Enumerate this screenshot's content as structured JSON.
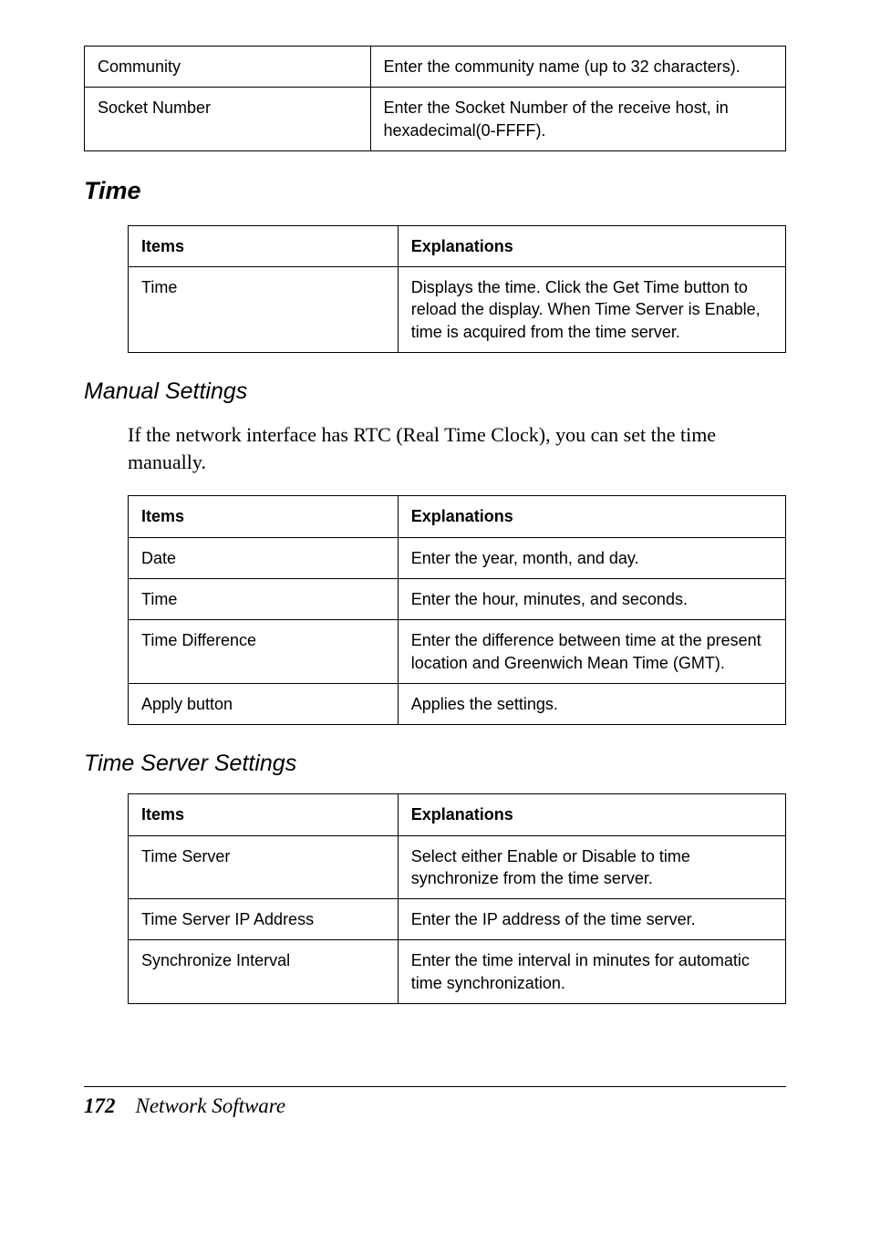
{
  "top_table": {
    "rows": [
      {
        "item": "Community",
        "explanation": "Enter the community name (up to 32 characters)."
      },
      {
        "item": "Socket Number",
        "explanation": "Enter the Socket Number of the receive host, in hexadecimal(0-FFFF)."
      }
    ]
  },
  "time_section": {
    "title": "Time",
    "table": {
      "header": {
        "items": "Items",
        "explanations": "Explanations"
      },
      "rows": [
        {
          "item": "Time",
          "explanation": "Displays the time. Click the Get Time button to reload the display. When Time Server is Enable, time is acquired from the time server."
        }
      ]
    }
  },
  "manual_settings": {
    "title": "Manual Settings",
    "body": "If the network interface has RTC (Real Time Clock), you can set the time manually.",
    "table": {
      "header": {
        "items": "Items",
        "explanations": "Explanations"
      },
      "rows": [
        {
          "item": "Date",
          "explanation": "Enter the year, month, and day."
        },
        {
          "item": "Time",
          "explanation": "Enter the hour, minutes, and seconds."
        },
        {
          "item": "Time Difference",
          "explanation": "Enter the difference between time at the present location and Greenwich Mean Time (GMT)."
        },
        {
          "item": "Apply button",
          "explanation": "Applies the settings."
        }
      ]
    }
  },
  "time_server_settings": {
    "title": "Time Server Settings",
    "table": {
      "header": {
        "items": "Items",
        "explanations": "Explanations"
      },
      "rows": [
        {
          "item": "Time Server",
          "explanation": "Select either Enable or Disable to time synchronize from the time server."
        },
        {
          "item": "Time Server IP Address",
          "explanation": "Enter the IP address of the time server."
        },
        {
          "item": "Synchronize Interval",
          "explanation": "Enter the time interval in minutes for automatic time synchronization."
        }
      ]
    }
  },
  "footer": {
    "page": "172",
    "title": "Network Software"
  }
}
